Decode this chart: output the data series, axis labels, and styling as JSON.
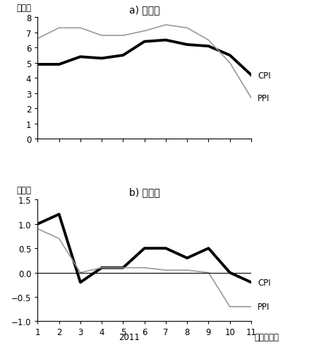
{
  "title_a": "a) 前年比",
  "title_b": "b) 前月比",
  "xlabel_year": "2011",
  "xlabel_unit": "（年、月）",
  "ylabel_unit": "（％）",
  "months": [
    1,
    2,
    3,
    4,
    5,
    6,
    7,
    8,
    9,
    10,
    11
  ],
  "cpi_yoy": [
    4.9,
    4.9,
    5.4,
    5.3,
    5.5,
    6.4,
    6.5,
    6.2,
    6.1,
    5.5,
    4.2
  ],
  "ppi_yoy": [
    6.6,
    7.3,
    7.3,
    6.8,
    6.8,
    7.1,
    7.5,
    7.3,
    6.5,
    5.0,
    2.7
  ],
  "cpi_mom": [
    1.0,
    1.2,
    -0.2,
    0.1,
    0.1,
    0.5,
    0.5,
    0.3,
    0.5,
    0.0,
    -0.2
  ],
  "ppi_mom": [
    0.9,
    0.7,
    0.0,
    0.1,
    0.1,
    0.1,
    0.05,
    0.05,
    0.0,
    -0.7,
    -0.7
  ],
  "cpi_color": "#000000",
  "ppi_color": "#999999",
  "cpi_linewidth": 2.8,
  "ppi_linewidth": 1.2,
  "yoy_ylim": [
    0,
    8
  ],
  "yoy_yticks": [
    0,
    1,
    2,
    3,
    4,
    5,
    6,
    7,
    8
  ],
  "mom_ylim": [
    -1.0,
    1.5
  ],
  "mom_yticks": [
    -1.0,
    -0.5,
    0.0,
    0.5,
    1.0,
    1.5
  ],
  "background_color": "#ffffff",
  "text_color": "#000000",
  "tick_label_fontsize": 8.5,
  "axis_label_fontsize": 8.5,
  "title_fontsize": 10,
  "legend_fontsize": 8.5
}
